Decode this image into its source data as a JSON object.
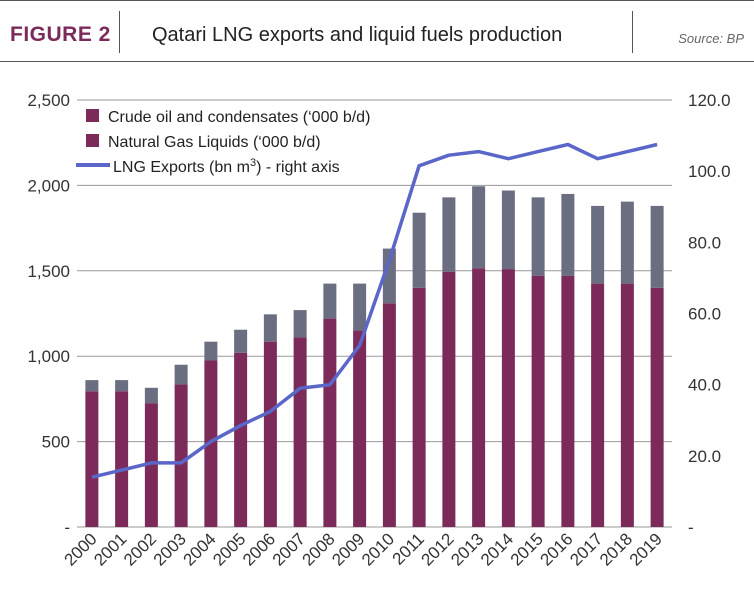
{
  "header": {
    "figure_label": "FIGURE 2",
    "title": "Qatari LNG exports and liquid fuels production",
    "source": "Source: BP"
  },
  "colors": {
    "crude": "#7b2a5a",
    "ngl": "#6b6d80",
    "lng_line": "#5a66c8",
    "grid": "#9a9a9a",
    "figure_label": "#7b2a5a"
  },
  "chart_data": {
    "type": "bar",
    "stacked": true,
    "categories": [
      "2000",
      "2001",
      "2002",
      "2003",
      "2004",
      "2005",
      "2006",
      "2007",
      "2008",
      "2009",
      "2010",
      "2011",
      "2012",
      "2013",
      "2014",
      "2015",
      "2016",
      "2017",
      "2018",
      "2019"
    ],
    "series": [
      {
        "name": "Crude oil and condensates (‘000 b/d)",
        "axis": "left",
        "values": [
          795,
          795,
          725,
          835,
          975,
          1020,
          1085,
          1110,
          1220,
          1150,
          1310,
          1400,
          1495,
          1515,
          1510,
          1470,
          1470,
          1425,
          1425,
          1400
        ]
      },
      {
        "name": "Natural Gas Liquids (‘000 b/d)",
        "axis": "left",
        "values": [
          65,
          65,
          90,
          115,
          110,
          135,
          160,
          160,
          205,
          275,
          320,
          440,
          435,
          480,
          460,
          460,
          480,
          455,
          480,
          480
        ]
      },
      {
        "name": "LNG Exports (bn m³) - right axis",
        "type": "line",
        "axis": "right",
        "values": [
          14.0,
          16.0,
          18.0,
          18.0,
          24.0,
          28.5,
          32.5,
          39.0,
          40.0,
          51.0,
          75.0,
          101.5,
          104.5,
          105.5,
          103.5,
          105.5,
          107.5,
          103.5,
          105.5,
          107.5
        ]
      }
    ],
    "y_left": {
      "ylim": [
        0,
        2500
      ],
      "ticks": [
        "-",
        "500",
        "1,000",
        "1,500",
        "2,000",
        "2,500"
      ]
    },
    "y_right": {
      "ylim": [
        0,
        120
      ],
      "ticks": [
        "-",
        "20.0",
        "40.0",
        "60.0",
        "80.0",
        "100.0",
        "120.0"
      ]
    },
    "grid": true,
    "legend_position": "top-left",
    "legend": {
      "crude": "Crude oil and condensates (‘000 b/d)",
      "ngl": "Natural Gas Liquids (‘000 b/d)",
      "lng_prefix": "LNG Exports (bn m",
      "lng_sup": "3",
      "lng_suffix": ") - right axis"
    }
  }
}
